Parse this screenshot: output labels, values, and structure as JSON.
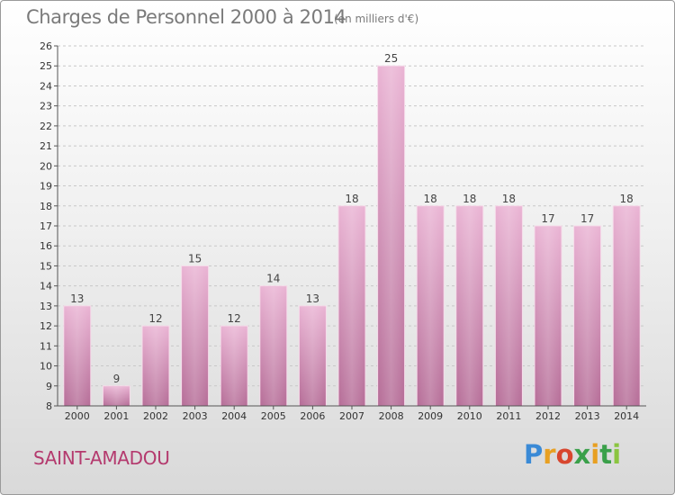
{
  "header": {
    "title": "Charges de Personnel 2000 à 2014",
    "subtitle": "(en milliers d'€)"
  },
  "footer": {
    "commune": "SAINT-AMADOU",
    "logo_text": "Proxiti"
  },
  "colors": {
    "bar_light": "#ebb5d6",
    "bar_dark": "#b8709a",
    "bar_edge": "#f6dcea",
    "grid": "#c8c8c8",
    "commune": "#b43a6e"
  },
  "chart_data": {
    "type": "bar",
    "title": "Charges de Personnel 2000 à 2014",
    "subtitle": "(en milliers d'€)",
    "categories": [
      "2000",
      "2001",
      "2002",
      "2003",
      "2004",
      "2005",
      "2006",
      "2007",
      "2008",
      "2009",
      "2010",
      "2011",
      "2012",
      "2013",
      "2014"
    ],
    "values": [
      13,
      9,
      12,
      15,
      12,
      14,
      13,
      18,
      25,
      18,
      18,
      18,
      17,
      17,
      18
    ],
    "data_labels": [
      "13",
      "9",
      "12",
      "15",
      "12",
      "14",
      "13",
      "18",
      "25",
      "18",
      "18",
      "18",
      "17",
      "17",
      "18"
    ],
    "xlabel": "",
    "ylabel": "",
    "ylim": [
      8,
      26
    ],
    "yticks": [
      8,
      9,
      10,
      11,
      12,
      13,
      14,
      15,
      16,
      17,
      18,
      19,
      20,
      21,
      22,
      23,
      24,
      25,
      26
    ],
    "grid": true,
    "legend": "none"
  }
}
